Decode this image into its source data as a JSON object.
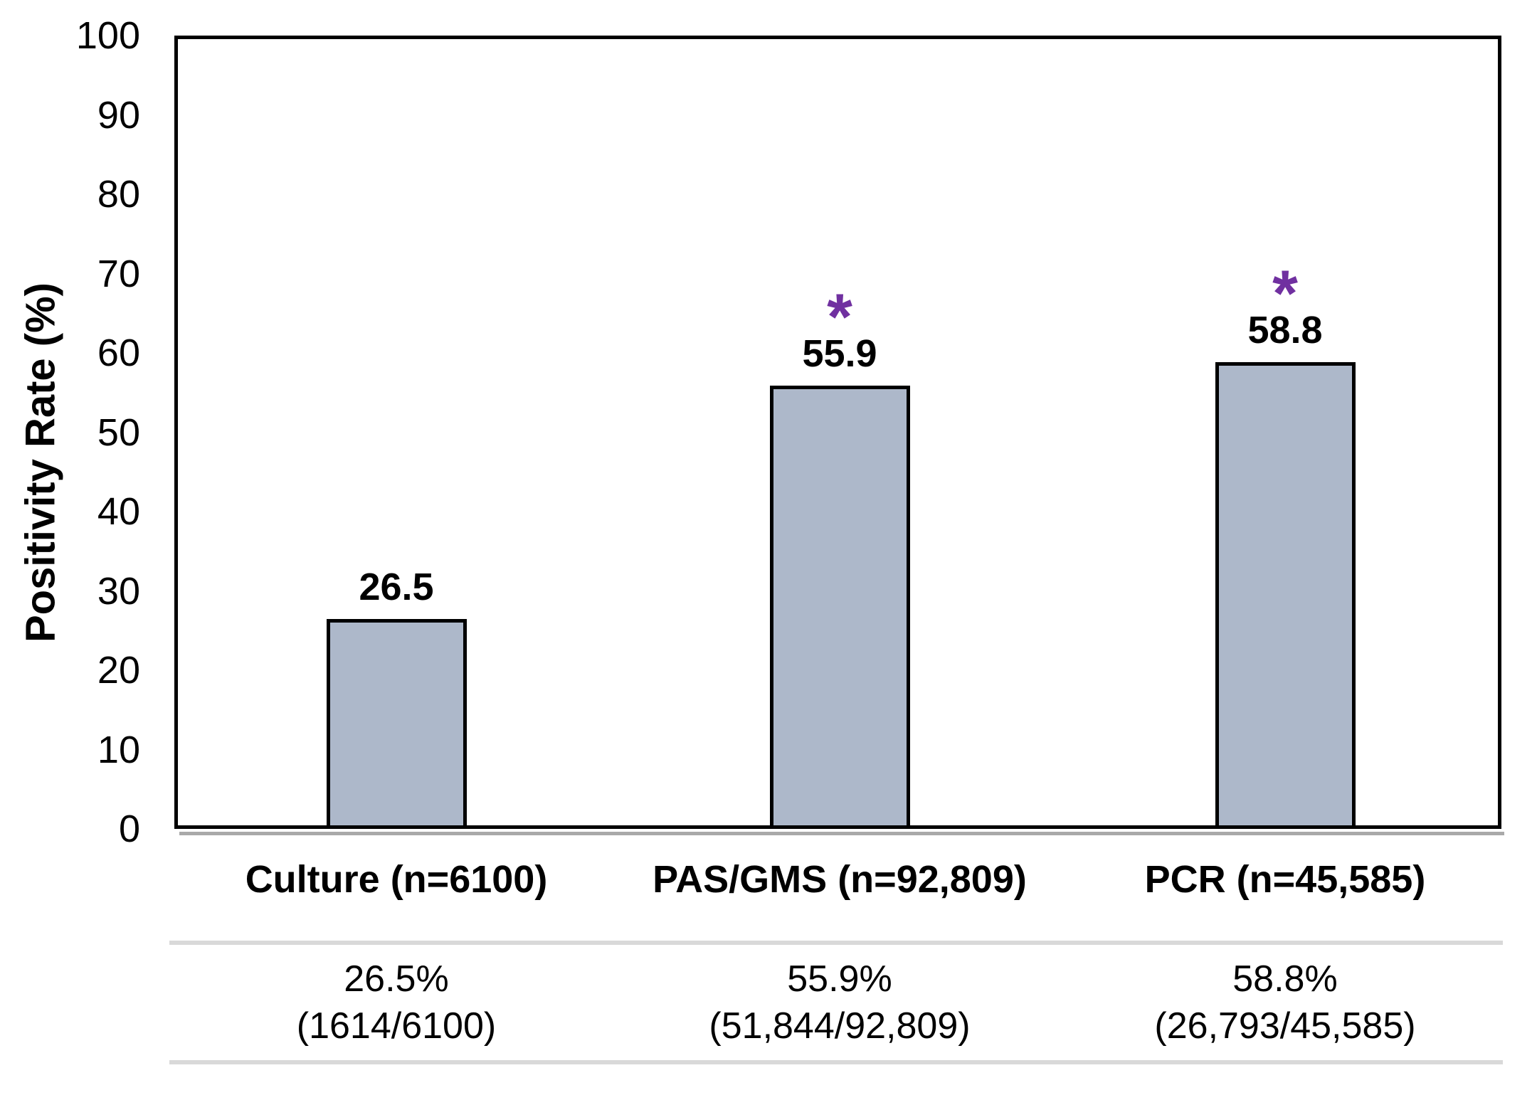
{
  "chart_data": {
    "type": "bar",
    "title": "",
    "xlabel": "",
    "ylabel": "Positivity Rate (%)",
    "ylim": [
      0,
      100
    ],
    "yticks": [
      0,
      10,
      20,
      30,
      40,
      50,
      60,
      70,
      80,
      90,
      100
    ],
    "grid": false,
    "legend": false,
    "categories": [
      "Culture (n=6100)",
      "PAS/GMS (n=92,809)",
      "PCR (n=45,585)"
    ],
    "values": [
      26.5,
      55.9,
      58.8
    ],
    "value_labels": [
      "26.5",
      "55.9",
      "58.8"
    ],
    "significance_markers": [
      false,
      true,
      true
    ],
    "significance_symbol": "*",
    "colors": {
      "bar_fill": "#adb8ca",
      "bar_border": "#000000",
      "axis": "#000000",
      "significance": "#7030a0",
      "table_rule": "#d9d9d9"
    },
    "table_row": [
      {
        "percent": "26.5%",
        "fraction": "(1614/6100)"
      },
      {
        "percent": "55.9%",
        "fraction": "(51,844/92,809)"
      },
      {
        "percent": "58.8%",
        "fraction": "(26,793/45,585)"
      }
    ]
  }
}
